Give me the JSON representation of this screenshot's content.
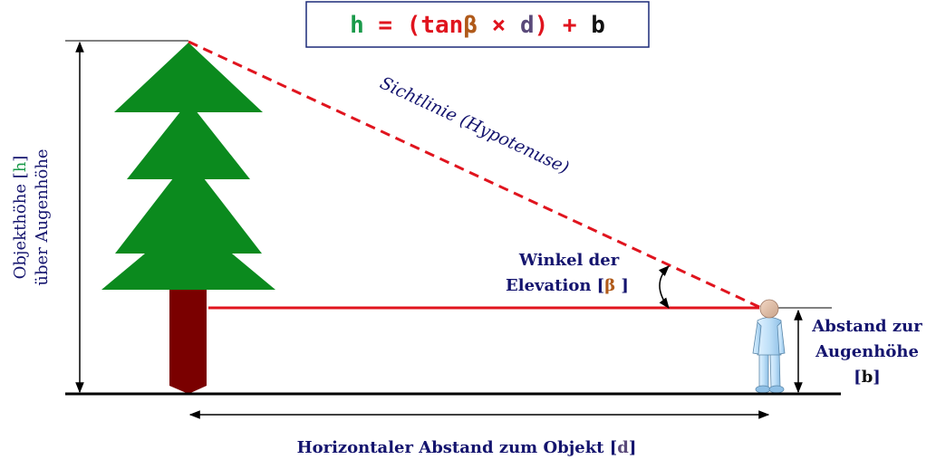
{
  "formula": {
    "h": "h",
    "eq": " = ",
    "lparen": "(",
    "tan": "tan",
    "beta": "β",
    "times": " × ",
    "d": "d",
    "rparen": ")",
    "plus": " + ",
    "b": "b"
  },
  "hypotenuse_label": "Sichtlinie (Hypotenuse)",
  "angle_label": {
    "line1": "Winkel der",
    "line2_prefix": "Elevation [",
    "symbol": "β",
    "line2_suffix": " ]"
  },
  "height_label": {
    "line1_prefix": "Objekthöhe [",
    "symbol": "h",
    "line1_suffix": "]",
    "line2": "über Augenhöhe"
  },
  "eye_height_label": {
    "line1": "Abstand zur",
    "line2": "Augenhöhe",
    "line3_prefix": "[",
    "symbol": "b",
    "line3_suffix": "]"
  },
  "distance_label": {
    "prefix": "Horizontaler Abstand zum Objekt [",
    "symbol": "d",
    "suffix": "]"
  },
  "colors": {
    "h": "#1a9a4a",
    "beta": "#b05a1a",
    "d": "#5a4a7a",
    "red": "#e0141e",
    "navy": "#14146e",
    "tree_green": "#0b8a1e",
    "trunk": "#7a0000"
  }
}
